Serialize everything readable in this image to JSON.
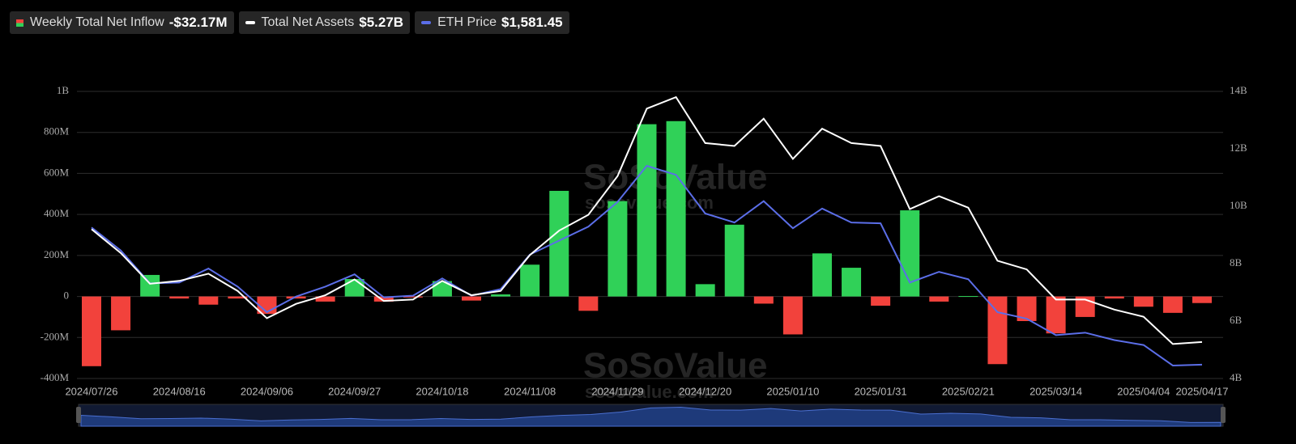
{
  "chart_data": {
    "type": "bar_line",
    "categories": [
      "2024/07/26",
      null,
      null,
      "2024/08/16",
      null,
      null,
      "2024/09/06",
      null,
      null,
      "2024/09/27",
      null,
      null,
      "2024/10/18",
      null,
      null,
      "2024/11/08",
      null,
      null,
      "2024/11/29",
      null,
      null,
      "2024/12/20",
      null,
      null,
      "2025/01/10",
      null,
      null,
      "2025/01/31",
      null,
      null,
      "2025/02/21",
      null,
      null,
      "2025/03/14",
      null,
      null,
      "2025/04/04",
      null,
      "2025/04/17"
    ],
    "series": [
      {
        "name": "Weekly Total Net Inflow",
        "legend_value": "-$32.17M",
        "type": "bar",
        "positive_color": "#30d158",
        "negative_color": "#f2423c",
        "values": [
          -340000000,
          -165000000,
          105000000,
          -10000000,
          -40000000,
          -10000000,
          -85000000,
          -10000000,
          -25000000,
          85000000,
          -25000000,
          -5000000,
          75000000,
          -20000000,
          10000000,
          155000000,
          515000000,
          -70000000,
          465000000,
          840000000,
          855000000,
          60000000,
          350000000,
          -35000000,
          -185000000,
          210000000,
          140000000,
          -45000000,
          420000000,
          -25000000,
          2000000,
          -330000000,
          -120000000,
          -180000000,
          -100000000,
          -10000000,
          -50000000,
          -80000000,
          -32170000
        ]
      },
      {
        "name": "Total Net Assets",
        "legend_value": "$5.27B",
        "type": "line",
        "axis": "y2",
        "color": "#ffffff",
        "values": [
          9200000000,
          8370000000,
          7300000000,
          7400000000,
          7650000000,
          7050000000,
          6100000000,
          6600000000,
          6900000000,
          7450000000,
          6700000000,
          6750000000,
          7400000000,
          6900000000,
          7050000000,
          8300000000,
          9150000000,
          9700000000,
          11050000000,
          13400000000,
          13800000000,
          12200000000,
          12100000000,
          13050000000,
          11650000000,
          12700000000,
          12200000000,
          12100000000,
          9900000000,
          10350000000,
          9950000000,
          8100000000,
          7800000000,
          6750000000,
          6750000000,
          6400000000,
          6150000000,
          5200000000,
          5270000000
        ]
      },
      {
        "name": "ETH Price",
        "legend_value": "$1,581.45",
        "type": "line",
        "axis": "hidden",
        "color": "#5b6ee8",
        "values": [
          3250,
          2970,
          2570,
          2580,
          2750,
          2530,
          2220,
          2410,
          2530,
          2680,
          2400,
          2420,
          2630,
          2420,
          2500,
          2920,
          3090,
          3260,
          3560,
          4000,
          3890,
          3420,
          3310,
          3570,
          3240,
          3480,
          3310,
          3300,
          2580,
          2710,
          2620,
          2220,
          2140,
          1940,
          1970,
          1880,
          1820,
          1570,
          1581.45
        ]
      }
    ],
    "ylim": [
      -400000000,
      1000000000
    ],
    "yticks": [
      {
        "value": -400000000,
        "label": "-400M"
      },
      {
        "value": -200000000,
        "label": "-200M"
      },
      {
        "value": 0,
        "label": "0"
      },
      {
        "value": 200000000,
        "label": "200M"
      },
      {
        "value": 400000000,
        "label": "400M"
      },
      {
        "value": 600000000,
        "label": "600M"
      },
      {
        "value": 800000000,
        "label": "800M"
      },
      {
        "value": 1000000000,
        "label": "1B"
      }
    ],
    "y2lim": [
      4000000000,
      14000000000
    ],
    "y2ticks": [
      {
        "value": 4000000000,
        "label": "4B"
      },
      {
        "value": 6000000000,
        "label": "6B"
      },
      {
        "value": 8000000000,
        "label": "8B"
      },
      {
        "value": 10000000000,
        "label": "10B"
      },
      {
        "value": 12000000000,
        "label": "12B"
      },
      {
        "value": 14000000000,
        "label": "14B"
      }
    ],
    "grid": true,
    "watermarks": [
      "SoSoValue",
      "sosovalue.com"
    ]
  }
}
